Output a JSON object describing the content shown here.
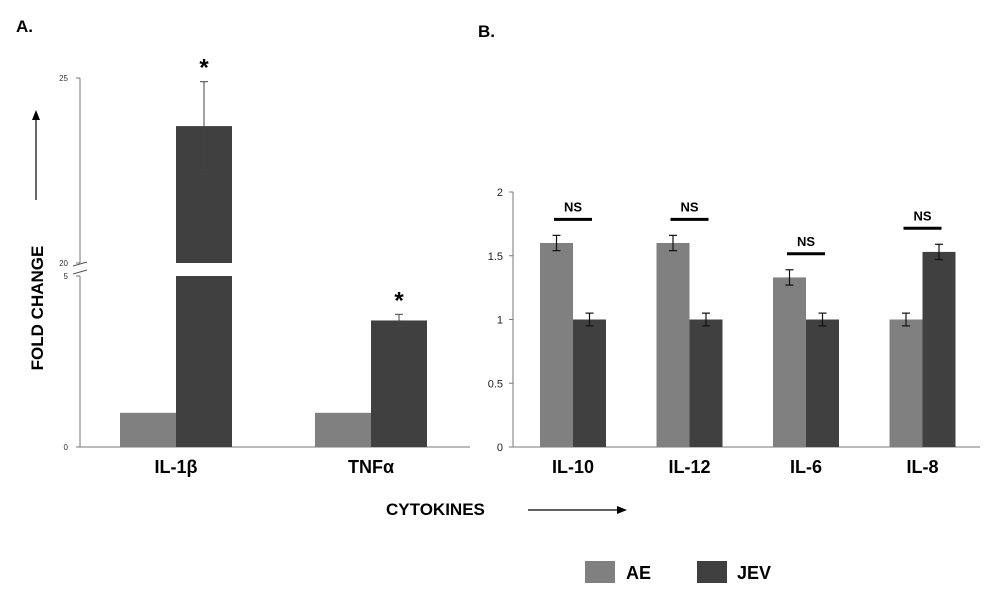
{
  "panels": {
    "a_label": "A.",
    "b_label": "B."
  },
  "axis": {
    "ylabel": "FOLD CHANGE",
    "xlabel": "CYTOKINES"
  },
  "legend": [
    {
      "name": "AE",
      "color": "#808080"
    },
    {
      "name": "JEV",
      "color": "#404040"
    }
  ],
  "chart_data": [
    {
      "type": "bar",
      "panel": "A.",
      "categories": [
        "IL-1β",
        "TNFα"
      ],
      "series": [
        {
          "name": "AE",
          "values": [
            1,
            1
          ],
          "errors": [
            0,
            0
          ]
        },
        {
          "name": "JEV",
          "values": [
            23.7,
            3.7
          ],
          "errors": [
            1.2,
            0.18
          ]
        }
      ],
      "significance": [
        "*",
        "*"
      ],
      "ylim": [
        0,
        25
      ],
      "axis_break": [
        5,
        20
      ],
      "yticks": [
        "0",
        "5",
        "20",
        "25"
      ],
      "xlabel": "",
      "ylabel": "FOLD CHANGE"
    },
    {
      "type": "bar",
      "panel": "B.",
      "categories": [
        "IL-10",
        "IL-12",
        "IL-6",
        "IL-8"
      ],
      "series": [
        {
          "name": "AE",
          "values": [
            1.6,
            1.6,
            1.33,
            1.0
          ],
          "errors": [
            0.06,
            0.06,
            0.06,
            0.05
          ]
        },
        {
          "name": "JEV",
          "values": [
            1.0,
            1.0,
            1.0,
            1.53
          ],
          "errors": [
            0.05,
            0.05,
            0.05,
            0.06
          ]
        }
      ],
      "significance": [
        "NS",
        "NS",
        "NS",
        "NS"
      ],
      "ylim": [
        0,
        2
      ],
      "yticks": [
        "0",
        "0.5",
        "1",
        "1.5",
        "2"
      ],
      "xlabel": "CYTOKINES",
      "ylabel": ""
    }
  ]
}
